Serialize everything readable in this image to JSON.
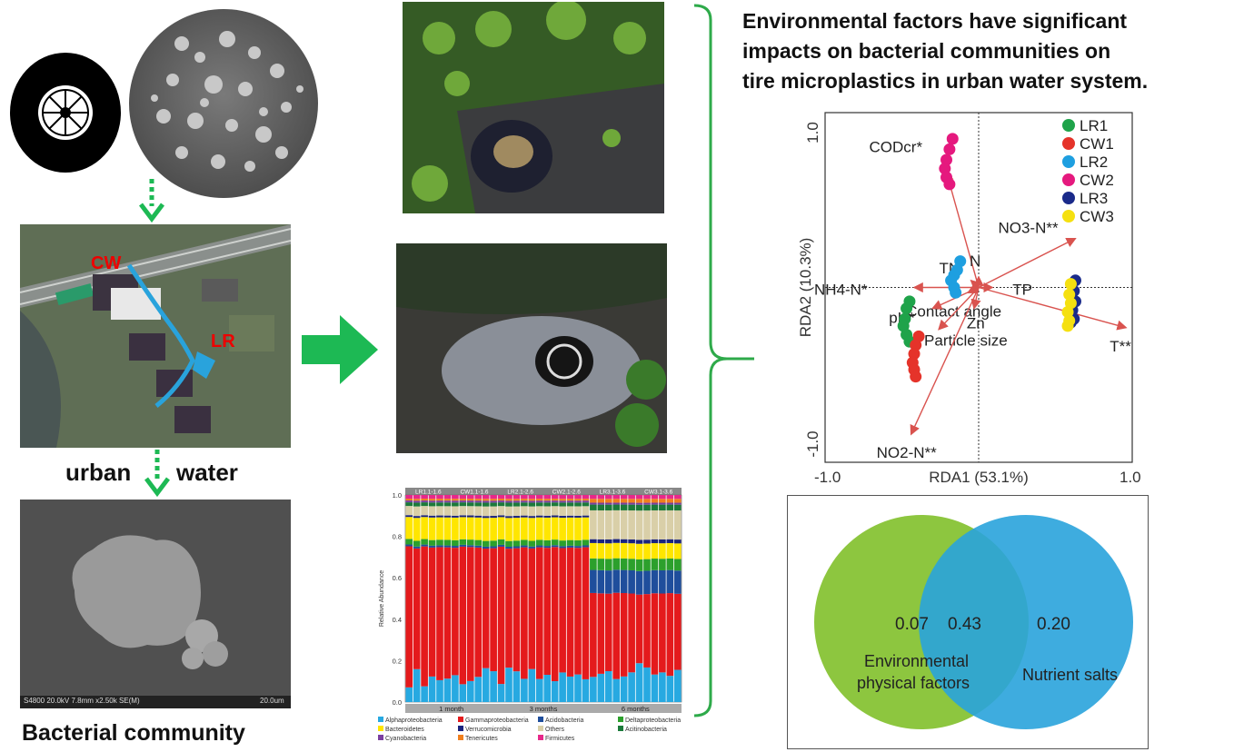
{
  "title": "Environmental factors have significant impacts on bacterial communities on tire microplastics in urban water system.",
  "title_lines": [
    "Environmental factors have significant",
    "impacts on bacterial communities on",
    "tire microplastics in urban water system."
  ],
  "map": {
    "label_cw": "CW",
    "label_lr": "LR"
  },
  "urban_water": {
    "left": "urban",
    "right": "water"
  },
  "bacterial_community": "Bacterial community",
  "sem_caption": "S4800 20.0kV 7.8mm x2.50k SE(M)",
  "sem_scale": "20.0um",
  "colors": {
    "arrow_green": "#1db954",
    "bracket_green": "#2eaa4a",
    "arrow_red": "#d9534f",
    "venn_left": "#8dc63f",
    "venn_right": "#29a3dc"
  },
  "bar_chart": {
    "groups_top": [
      "LR1.1-1.6",
      "CW1.1-1.6",
      "LR2.1-2.6",
      "CW2.1-2.6",
      "LR3.1-3.6",
      "CW3.1-3.6"
    ],
    "groups_bottom": [
      "1 month",
      "3 months",
      "6 months"
    ],
    "ylabel": "Relative Abundance",
    "yticks": [
      "0.0",
      "0.2",
      "0.4",
      "0.6",
      "0.8",
      "1.0"
    ],
    "legend": [
      {
        "name": "Alphaproteobacteria",
        "color": "#27a9e1"
      },
      {
        "name": "Gammaproteobacteria",
        "color": "#e41a1c"
      },
      {
        "name": "Acidobacteria",
        "color": "#1f4e9c"
      },
      {
        "name": "Deltaproteobacteria",
        "color": "#2ca02c"
      },
      {
        "name": "Bacteroidetes",
        "color": "#ffe600"
      },
      {
        "name": "Verrucomicrobia",
        "color": "#1a237e"
      },
      {
        "name": "Others",
        "color": "#d9cfa8"
      },
      {
        "name": "Acitinobacteria",
        "color": "#1b7a3a"
      },
      {
        "name": "Cyanobacteria",
        "color": "#7b3fa0"
      },
      {
        "name": "Tenericutes",
        "color": "#f07f1d"
      },
      {
        "name": "Firmicutes",
        "color": "#e7298a"
      }
    ]
  },
  "chart_data": {
    "type": "scatter",
    "xlabel": "RDA1 (53.1%)",
    "ylabel": "RDA2 (10.3%)",
    "xlim": [
      -1.0,
      1.0
    ],
    "ylim": [
      -1.0,
      1.0
    ],
    "xticks": [
      "-1.0",
      "1.0"
    ],
    "yticks": [
      "1.0",
      "-1.0"
    ],
    "legend_position": "top-right",
    "series": [
      {
        "name": "LR1",
        "color": "#1fa34a",
        "points": [
          [
            -0.45,
            -0.08
          ],
          [
            -0.47,
            -0.12
          ],
          [
            -0.48,
            -0.18
          ],
          [
            -0.49,
            -0.22
          ],
          [
            -0.47,
            -0.27
          ],
          [
            -0.45,
            -0.31
          ]
        ]
      },
      {
        "name": "CW1",
        "color": "#e5332a",
        "points": [
          [
            -0.39,
            -0.28
          ],
          [
            -0.41,
            -0.33
          ],
          [
            -0.42,
            -0.38
          ],
          [
            -0.43,
            -0.43
          ],
          [
            -0.42,
            -0.47
          ],
          [
            -0.41,
            -0.51
          ]
        ]
      },
      {
        "name": "CW2",
        "color": "#e5197e",
        "points": [
          [
            -0.17,
            0.85
          ],
          [
            -0.19,
            0.79
          ],
          [
            -0.21,
            0.73
          ],
          [
            -0.22,
            0.68
          ],
          [
            -0.21,
            0.63
          ],
          [
            -0.19,
            0.59
          ]
        ]
      },
      {
        "name": "LR2",
        "color": "#1e9fe0",
        "points": [
          [
            -0.12,
            0.15
          ],
          [
            -0.14,
            0.1
          ],
          [
            -0.16,
            0.07
          ],
          [
            -0.18,
            0.04
          ],
          [
            -0.16,
            0.0
          ],
          [
            -0.15,
            -0.03
          ]
        ]
      },
      {
        "name": "LR3",
        "color": "#1a2a8a",
        "points": [
          [
            0.63,
            0.04
          ],
          [
            0.62,
            -0.02
          ],
          [
            0.63,
            -0.08
          ],
          [
            0.61,
            -0.13
          ],
          [
            0.62,
            -0.18
          ],
          [
            0.6,
            -0.2
          ]
        ]
      },
      {
        "name": "CW3",
        "color": "#f5e010",
        "points": [
          [
            0.6,
            0.02
          ],
          [
            0.59,
            -0.04
          ],
          [
            0.6,
            -0.09
          ],
          [
            0.58,
            -0.14
          ],
          [
            0.59,
            -0.19
          ],
          [
            0.58,
            -0.22
          ]
        ]
      }
    ],
    "vectors": [
      {
        "label": "CODcr*",
        "x": -0.21,
        "y": 0.66
      },
      {
        "label": "NO3-N**",
        "x": 0.63,
        "y": 0.28
      },
      {
        "label": "TN",
        "x": -0.05,
        "y": 0.04
      },
      {
        "label": "N",
        "x": 0.0,
        "y": 0.06
      },
      {
        "label": "NH4-N*",
        "x": -0.42,
        "y": 0.0
      },
      {
        "label": "TP",
        "x": 0.09,
        "y": 0.0
      },
      {
        "label": "Contact angle",
        "x": -0.07,
        "y": -0.03
      },
      {
        "label": "Zn",
        "x": -0.03,
        "y": -0.12
      },
      {
        "label": "pH*",
        "x": -0.3,
        "y": -0.12
      },
      {
        "label": "Particle size",
        "x": -0.26,
        "y": -0.24
      },
      {
        "label": "T**",
        "x": 0.96,
        "y": -0.23
      },
      {
        "label": "NO2-N**",
        "x": -0.44,
        "y": -0.84
      }
    ]
  },
  "venn": {
    "left_value": "0.07",
    "overlap_value": "0.43",
    "right_value": "0.20",
    "left_label_line1": "Environmental",
    "left_label_line2": "physical factors",
    "right_label": "Nutrient salts"
  }
}
